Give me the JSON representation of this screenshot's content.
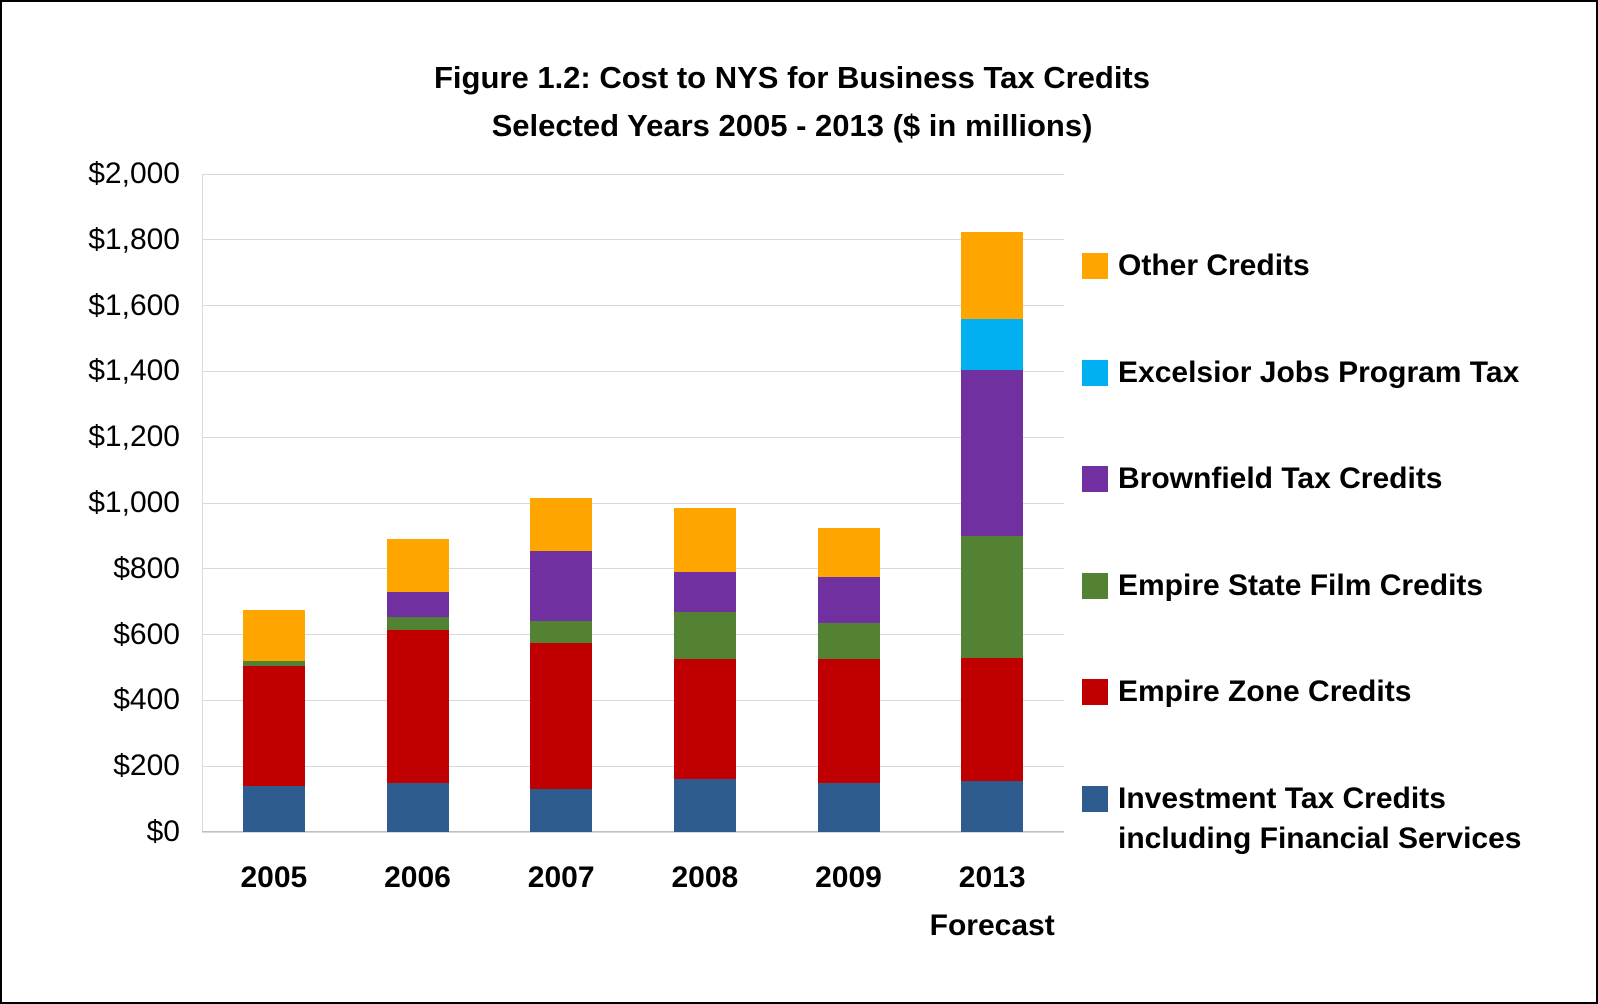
{
  "title": {
    "line1": "Figure 1.2: Cost to NYS for Business Tax Credits",
    "line2": "Selected Years 2005 - 2013 ($ in millions)"
  },
  "chart_data": {
    "type": "bar",
    "stacked": true,
    "categories": [
      [
        "2005"
      ],
      [
        "2006"
      ],
      [
        "2007"
      ],
      [
        "2008"
      ],
      [
        "2009"
      ],
      [
        "2013",
        "Forecast"
      ]
    ],
    "series": [
      {
        "name": "Investment Tax Credits including Financial Services",
        "color": "#2e5c8f",
        "values": [
          140,
          150,
          130,
          160,
          150,
          155
        ]
      },
      {
        "name": "Empire Zone Credits",
        "color": "#c00000",
        "values": [
          365,
          465,
          445,
          365,
          375,
          375
        ]
      },
      {
        "name": "Empire State Film Credits",
        "color": "#548235",
        "values": [
          15,
          40,
          65,
          145,
          110,
          370
        ]
      },
      {
        "name": "Brownfield Tax Credits",
        "color": "#7030a0",
        "values": [
          0,
          75,
          215,
          120,
          140,
          505
        ]
      },
      {
        "name": "Excelsior Jobs Program Tax",
        "color": "#00b0f0",
        "values": [
          0,
          0,
          0,
          0,
          0,
          155
        ]
      },
      {
        "name": "Other Credits",
        "color": "#ffa500",
        "values": [
          155,
          160,
          160,
          195,
          150,
          265
        ]
      }
    ],
    "ylabel": "",
    "xlabel": "",
    "ylim": [
      0,
      2000
    ],
    "ytick_step": 200,
    "ytick_labels": [
      "$0",
      "$200",
      "$400",
      "$600",
      "$800",
      "$1,000",
      "$1,200",
      "$1,400",
      "$1,600",
      "$1,800",
      "$2,000"
    ],
    "grid": true,
    "legend_position": "right"
  },
  "legend": {
    "entries": [
      {
        "label_lines": [
          "Other Credits"
        ],
        "color": "#ffa500"
      },
      {
        "label_lines": [
          "Excelsior Jobs Program Tax"
        ],
        "color": "#00b0f0"
      },
      {
        "label_lines": [
          "Brownfield Tax Credits"
        ],
        "color": "#7030a0"
      },
      {
        "label_lines": [
          "Empire State Film Credits"
        ],
        "color": "#548235"
      },
      {
        "label_lines": [
          "Empire Zone Credits"
        ],
        "color": "#c00000"
      },
      {
        "label_lines": [
          "Investment Tax Credits",
          "including Financial Services"
        ],
        "color": "#2e5c8f"
      }
    ]
  }
}
